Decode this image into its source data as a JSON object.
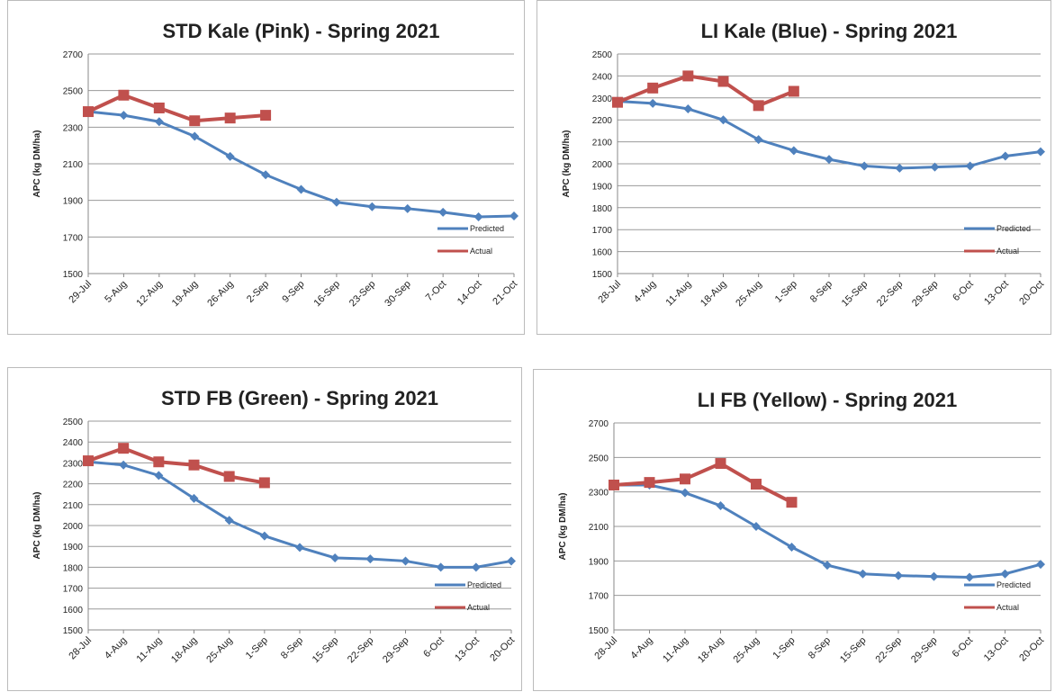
{
  "chart_data": [
    {
      "type": "line",
      "title": "STD Kale (Pink) - Spring 2021",
      "y_label": "APC (kg DM/ha)",
      "categories": [
        "29-Jul",
        "5-Aug",
        "12-Aug",
        "19-Aug",
        "26-Aug",
        "2-Sep",
        "9-Sep",
        "16-Sep",
        "23-Sep",
        "30-Sep",
        "7-Oct",
        "14-Oct",
        "21-Oct"
      ],
      "series": [
        {
          "name": "Predicted",
          "color": "#4f81bd",
          "values": [
            2385,
            2365,
            2330,
            2250,
            2140,
            2040,
            1960,
            1890,
            1865,
            1855,
            1835,
            1810,
            1815
          ]
        },
        {
          "name": "Actual",
          "color": "#c0504d",
          "values": [
            2385,
            2475,
            2405,
            2335,
            2350,
            2365,
            null,
            null,
            null,
            null,
            null,
            null,
            null
          ]
        }
      ],
      "ylim": [
        1500,
        2700
      ],
      "yticks": [
        1500,
        1700,
        1900,
        2100,
        2300,
        2500,
        2700
      ],
      "grid": true,
      "legend": "lower right"
    },
    {
      "type": "line",
      "title": "LI Kale (Blue) - Spring 2021",
      "y_label": "APC (kg DM/ha)",
      "categories": [
        "28-Jul",
        "4-Aug",
        "11-Aug",
        "18-Aug",
        "25-Aug",
        "1-Sep",
        "8-Sep",
        "15-Sep",
        "22-Sep",
        "29-Sep",
        "6-Oct",
        "13-Oct",
        "20-Oct"
      ],
      "series": [
        {
          "name": "Predicted",
          "color": "#4f81bd",
          "values": [
            2285,
            2275,
            2250,
            2200,
            2110,
            2060,
            2020,
            1990,
            1980,
            1985,
            1990,
            2035,
            2055
          ]
        },
        {
          "name": "Actual",
          "color": "#c0504d",
          "values": [
            2280,
            2345,
            2400,
            2375,
            2265,
            2330,
            null,
            null,
            null,
            null,
            null,
            null,
            null
          ]
        }
      ],
      "ylim": [
        1500,
        2500
      ],
      "yticks": [
        1500,
        1600,
        1700,
        1800,
        1900,
        2000,
        2100,
        2200,
        2300,
        2400,
        2500
      ],
      "grid": true,
      "legend": "lower right"
    },
    {
      "type": "line",
      "title": "STD FB (Green) - Spring 2021",
      "y_label": "APC (kg DM/ha)",
      "categories": [
        "28-Jul",
        "4-Aug",
        "11-Aug",
        "18-Aug",
        "25-Aug",
        "1-Sep",
        "8-Sep",
        "15-Sep",
        "22-Sep",
        "29-Sep",
        "6-Oct",
        "13-Oct",
        "20-Oct"
      ],
      "series": [
        {
          "name": "Predicted",
          "color": "#4f81bd",
          "values": [
            2305,
            2290,
            2240,
            2130,
            2025,
            1950,
            1895,
            1845,
            1840,
            1830,
            1800,
            1800,
            1830
          ]
        },
        {
          "name": "Actual",
          "color": "#c0504d",
          "values": [
            2310,
            2370,
            2305,
            2290,
            2235,
            2205,
            null,
            null,
            null,
            null,
            null,
            null,
            null
          ]
        }
      ],
      "ylim": [
        1500,
        2500
      ],
      "yticks": [
        1500,
        1600,
        1700,
        1800,
        1900,
        2000,
        2100,
        2200,
        2300,
        2400,
        2500
      ],
      "grid": true,
      "legend": "lower right"
    },
    {
      "type": "line",
      "title": "LI FB (Yellow) - Spring 2021",
      "y_label": "APC (kg DM/ha)",
      "categories": [
        "28-Jul",
        "4-Aug",
        "11-Aug",
        "18-Aug",
        "25-Aug",
        "1-Sep",
        "8-Sep",
        "15-Sep",
        "22-Sep",
        "29-Sep",
        "6-Oct",
        "13-Oct",
        "20-Oct"
      ],
      "series": [
        {
          "name": "Predicted",
          "color": "#4f81bd",
          "values": [
            2340,
            2340,
            2295,
            2220,
            2100,
            1980,
            1875,
            1825,
            1815,
            1810,
            1805,
            1825,
            1880
          ]
        },
        {
          "name": "Actual",
          "color": "#c0504d",
          "values": [
            2340,
            2355,
            2375,
            2465,
            2345,
            2240,
            null,
            null,
            null,
            null,
            null,
            null,
            null
          ]
        }
      ],
      "ylim": [
        1500,
        2700
      ],
      "yticks": [
        1500,
        1700,
        1900,
        2100,
        2300,
        2500,
        2700
      ],
      "grid": true,
      "legend": "lower right"
    }
  ]
}
